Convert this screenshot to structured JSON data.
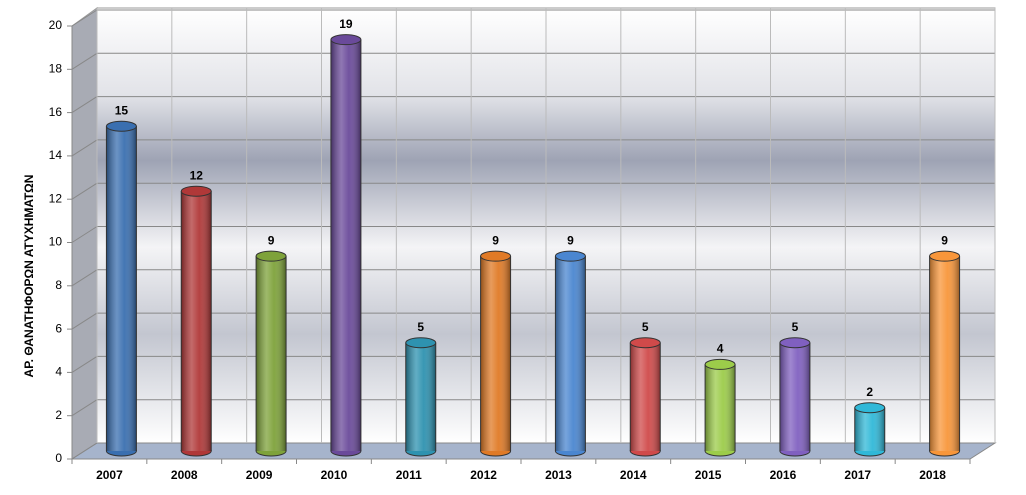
{
  "chart_data": {
    "type": "bar",
    "y_label": "ΑΡ. ΘΑΝΑΤΗΦΟΡΩΝ ΑΤΥΧΗΜΑΤΩΝ",
    "categories": [
      "2007",
      "2008",
      "2009",
      "2010",
      "2011",
      "2012",
      "2013",
      "2014",
      "2015",
      "2016",
      "2017",
      "2018"
    ],
    "values": [
      15,
      12,
      9,
      19,
      5,
      9,
      9,
      5,
      4,
      5,
      2,
      9
    ],
    "colors": [
      "#3a6fb0",
      "#b03838",
      "#7ea23a",
      "#6a4a9a",
      "#2e92b0",
      "#e07a26",
      "#4a86d0",
      "#d04a4a",
      "#9ccc4a",
      "#8060c0",
      "#30b8d8",
      "#f8963a"
    ],
    "ylim": [
      0,
      20
    ],
    "yticks": [
      0,
      2,
      4,
      6,
      8,
      10,
      12,
      14,
      16,
      18,
      20
    ],
    "grid": true
  }
}
